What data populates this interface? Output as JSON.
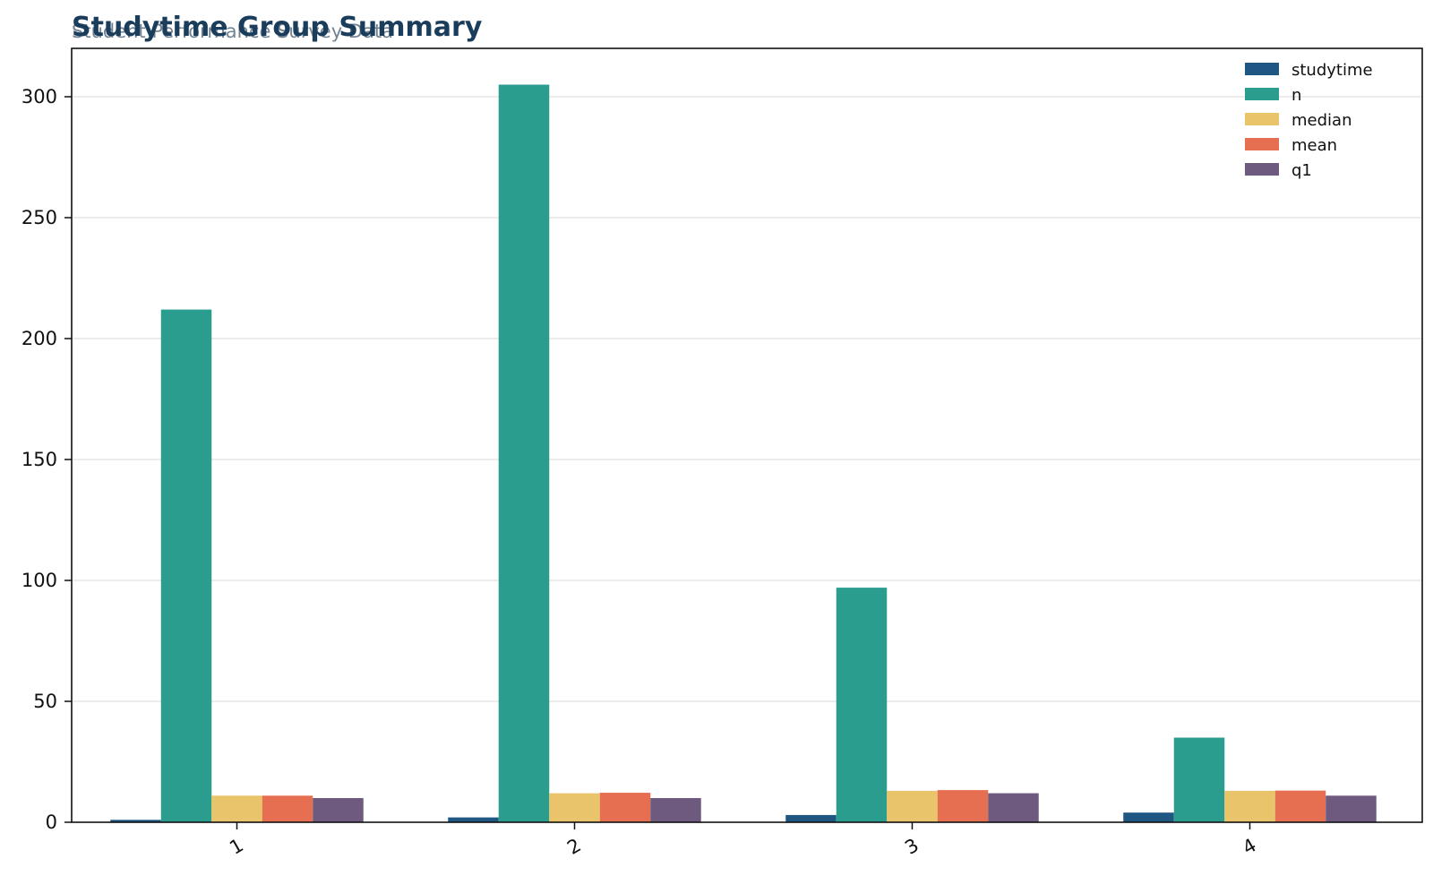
{
  "chart_data": {
    "type": "bar",
    "title": "Studytime Group Summary",
    "subtitle": "Student Performance Survey Data",
    "xlabel": "",
    "ylabel": "",
    "categories": [
      "1",
      "2",
      "3",
      "4"
    ],
    "ylim": [
      0,
      320
    ],
    "yticks": [
      0,
      50,
      100,
      150,
      200,
      250,
      300
    ],
    "grid": true,
    "legend_position": "top-right",
    "series": [
      {
        "name": "studytime",
        "color": "#1f5783",
        "values": [
          1,
          2,
          3,
          4
        ]
      },
      {
        "name": "n",
        "color": "#2a9d8f",
        "values": [
          212,
          305,
          97,
          35
        ]
      },
      {
        "name": "median",
        "color": "#e9c46a",
        "values": [
          11,
          12,
          13,
          13
        ]
      },
      {
        "name": "mean",
        "color": "#e76f51",
        "values": [
          11.0,
          12.2,
          13.3,
          13.1
        ]
      },
      {
        "name": "q1",
        "color": "#6d5a7e",
        "values": [
          10,
          10,
          12,
          11
        ]
      }
    ]
  }
}
